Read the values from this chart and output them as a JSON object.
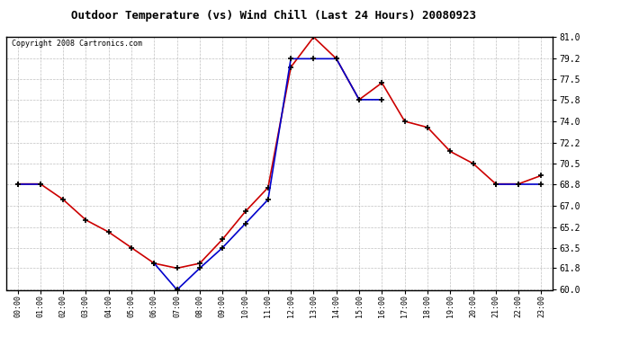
{
  "title": "Outdoor Temperature (vs) Wind Chill (Last 24 Hours) 20080923",
  "copyright_text": "Copyright 2008 Cartronics.com",
  "hours": [
    "00:00",
    "01:00",
    "02:00",
    "03:00",
    "04:00",
    "05:00",
    "06:00",
    "07:00",
    "08:00",
    "09:00",
    "10:00",
    "11:00",
    "12:00",
    "13:00",
    "14:00",
    "15:00",
    "16:00",
    "17:00",
    "18:00",
    "19:00",
    "20:00",
    "21:00",
    "22:00",
    "23:00"
  ],
  "temp": [
    68.8,
    68.8,
    67.5,
    65.8,
    64.8,
    63.5,
    62.2,
    61.8,
    62.2,
    64.2,
    66.5,
    68.5,
    78.5,
    81.0,
    79.2,
    75.8,
    77.2,
    74.0,
    73.5,
    71.5,
    70.5,
    68.8,
    68.8,
    69.5
  ],
  "wind_chill": [
    68.8,
    68.8,
    null,
    null,
    null,
    null,
    62.2,
    60.0,
    61.8,
    63.5,
    65.5,
    67.5,
    79.2,
    79.2,
    79.2,
    75.8,
    75.8,
    null,
    null,
    null,
    null,
    68.8,
    68.8,
    68.8
  ],
  "temp_color": "#cc0000",
  "wind_chill_color": "#0000cc",
  "bg_color": "#ffffff",
  "plot_bg_color": "#ffffff",
  "grid_color": "#b0b0b0",
  "ylim_min": 60.0,
  "ylim_max": 81.0,
  "yticks": [
    60.0,
    61.8,
    63.5,
    65.2,
    67.0,
    68.8,
    70.5,
    72.2,
    74.0,
    75.8,
    77.5,
    79.2,
    81.0
  ],
  "title_fontsize": 9,
  "copyright_fontsize": 6,
  "marker": "+",
  "marker_size": 5,
  "marker_color": "#000000",
  "line_width": 1.2
}
